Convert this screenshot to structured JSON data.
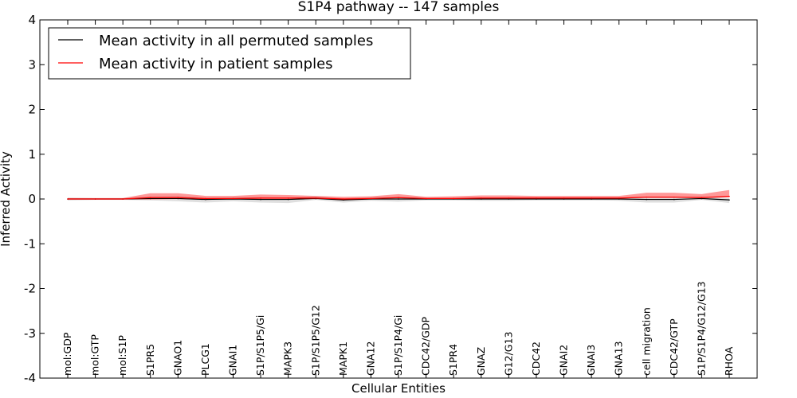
{
  "chart_data": {
    "type": "line",
    "title": "S1P4 pathway -- 147 samples",
    "xlabel": "Cellular Entities",
    "ylabel": "Inferred Activity",
    "ylim": [
      -4,
      4
    ],
    "yticks": [
      "-4",
      "-3",
      "-2",
      "-1",
      "0",
      "1",
      "2",
      "3",
      "4"
    ],
    "legend_position": "top-left",
    "categories": [
      "mol:GDP",
      "mol:GTP",
      "mol:S1P",
      "S1PR5",
      "GNAO1",
      "PLCG1",
      "GNAI1",
      "S1P/S1P5/Gi",
      "MAPK3",
      "S1P/S1P5/G12",
      "MAPK1",
      "GNA12",
      "S1P/S1P4/Gi",
      "CDC42/GDP",
      "S1PR4",
      "GNAZ",
      "G12/G13",
      "CDC42",
      "GNAI2",
      "GNAI3",
      "GNA13",
      "cell migration",
      "CDC42/GTP",
      "S1P/S1P4/G12/G13",
      "RHOA"
    ],
    "series": [
      {
        "name": "Mean activity in all permuted samples",
        "color": "#000000",
        "values": [
          0,
          0,
          0,
          0.01,
          0.01,
          -0.01,
          0,
          -0.01,
          -0.01,
          0.01,
          -0.02,
          0,
          0,
          0,
          0,
          0,
          0,
          0,
          0,
          0,
          0,
          -0.01,
          -0.01,
          0.01,
          -0.02
        ],
        "band_lower": [
          -0.03,
          -0.02,
          -0.02,
          -0.04,
          -0.06,
          -0.07,
          -0.05,
          -0.07,
          -0.08,
          -0.03,
          -0.06,
          -0.04,
          -0.06,
          -0.03,
          -0.03,
          -0.04,
          -0.04,
          -0.03,
          -0.03,
          -0.03,
          -0.04,
          -0.07,
          -0.07,
          -0.03,
          -0.07
        ],
        "band_upper": [
          0.03,
          0.02,
          0.02,
          0.05,
          0.06,
          0.04,
          0.04,
          0.05,
          0.04,
          0.05,
          0.03,
          0.04,
          0.05,
          0.03,
          0.03,
          0.03,
          0.03,
          0.03,
          0.03,
          0.03,
          0.03,
          0.05,
          0.05,
          0.05,
          0.04
        ]
      },
      {
        "name": "Mean activity in patient samples",
        "color": "#ff0000",
        "values": [
          0,
          0,
          0,
          0.03,
          0.03,
          0.01,
          0.01,
          0.02,
          0.02,
          0.02,
          0,
          0.01,
          0.03,
          0.01,
          0.01,
          0.02,
          0.02,
          0.02,
          0.02,
          0.02,
          0.02,
          0.04,
          0.04,
          0.03,
          0.06
        ],
        "band_lower": [
          -0.01,
          -0.01,
          -0.01,
          -0.04,
          -0.03,
          -0.03,
          -0.02,
          -0.02,
          -0.02,
          -0.01,
          -0.03,
          -0.01,
          -0.01,
          -0.01,
          -0.01,
          -0.01,
          -0.01,
          -0.01,
          -0.01,
          -0.01,
          -0.01,
          -0.01,
          -0.01,
          -0.01,
          -0.02
        ],
        "band_upper": [
          0.02,
          0.02,
          0.02,
          0.1,
          0.1,
          0.06,
          0.06,
          0.08,
          0.07,
          0.05,
          0.05,
          0.05,
          0.08,
          0.04,
          0.05,
          0.06,
          0.06,
          0.05,
          0.05,
          0.05,
          0.05,
          0.1,
          0.1,
          0.08,
          0.14
        ]
      }
    ]
  }
}
